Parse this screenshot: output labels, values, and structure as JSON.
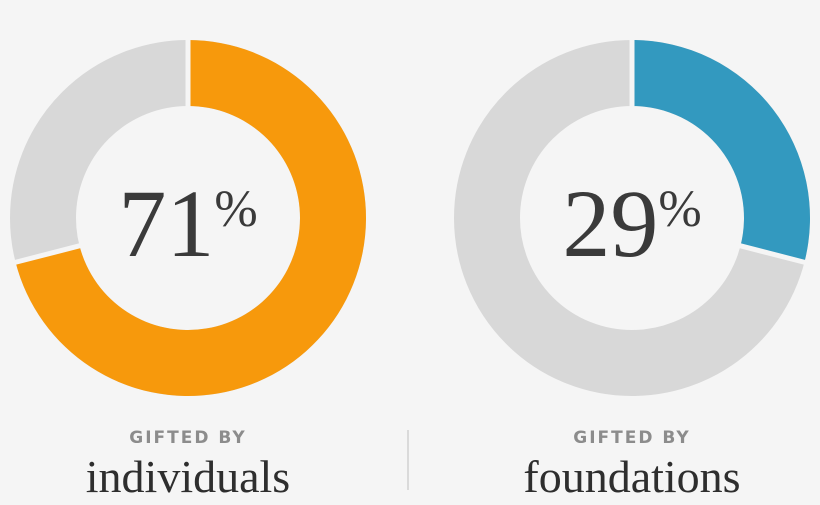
{
  "chart_data": [
    {
      "type": "donut",
      "values": [
        71
      ],
      "value_labels": [
        "71%"
      ],
      "color": "#f7990c",
      "track_color": "#d8d8d8",
      "ylim": [
        0,
        100
      ],
      "kicker": "GIFTED BY",
      "caption": "individuals"
    },
    {
      "type": "donut",
      "values": [
        29
      ],
      "value_labels": [
        "29%"
      ],
      "color": "#3399bf",
      "track_color": "#d8d8d8",
      "ylim": [
        0,
        100
      ],
      "kicker": "GIFTED BY",
      "caption": "foundations"
    }
  ]
}
